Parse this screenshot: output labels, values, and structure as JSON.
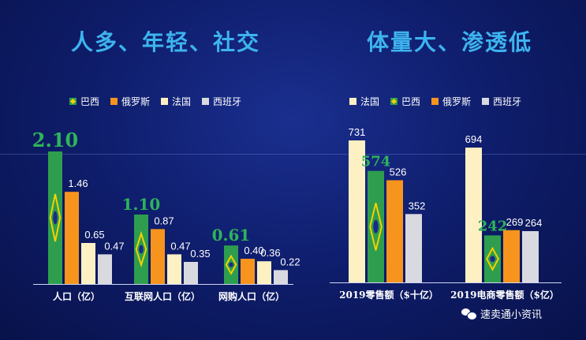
{
  "titles": {
    "left": "人多、年轻、社交",
    "right": "体量大、渗透低"
  },
  "legend_left": [
    {
      "label": "巴西",
      "color": "#2e9e4e",
      "icon": "brazil-flag-icon"
    },
    {
      "label": "俄罗斯",
      "color": "#f7941d",
      "icon": ""
    },
    {
      "label": "法国",
      "color": "#fdf0c2",
      "icon": ""
    },
    {
      "label": "西班牙",
      "color": "#d9d9e0",
      "icon": ""
    }
  ],
  "legend_right": [
    {
      "label": "法国",
      "color": "#fdf0c2",
      "icon": ""
    },
    {
      "label": "巴西",
      "color": "#2e9e4e",
      "icon": "brazil-flag-icon"
    },
    {
      "label": "俄罗斯",
      "color": "#f7941d",
      "icon": ""
    },
    {
      "label": "西班牙",
      "color": "#d9d9e0",
      "icon": ""
    }
  ],
  "chart_data": [
    {
      "type": "bar",
      "categories": [
        "人口（亿）",
        "互联网人口（亿）",
        "网购人口（亿）"
      ],
      "series": [
        {
          "name": "巴西",
          "values": [
            2.1,
            1.1,
            0.61
          ],
          "labels": [
            "2.10",
            "1.10",
            "0.61"
          ],
          "color": "#2e9e4e"
        },
        {
          "name": "俄罗斯",
          "values": [
            1.46,
            0.87,
            0.4
          ],
          "labels": [
            "1.46",
            "0.87",
            "0.40"
          ],
          "color": "#f7941d"
        },
        {
          "name": "法国",
          "values": [
            0.65,
            0.47,
            0.36
          ],
          "labels": [
            "0.65",
            "0.47",
            "0.36"
          ],
          "color": "#fdf0c2"
        },
        {
          "name": "西班牙",
          "values": [
            0.47,
            0.35,
            0.22
          ],
          "labels": [
            "0.47",
            "0.35",
            "0.22"
          ],
          "color": "#d9d9e0"
        }
      ],
      "ylim": [
        0,
        2.1
      ],
      "legend": "top"
    },
    {
      "type": "bar",
      "categories": [
        "2019零售额（$十亿）",
        "2019电商零售额（$亿）"
      ],
      "series": [
        {
          "name": "法国",
          "values": [
            731,
            694
          ],
          "labels": [
            "731",
            "694"
          ],
          "color": "#fdf0c2"
        },
        {
          "name": "巴西",
          "values": [
            574,
            242
          ],
          "labels": [
            "574",
            "242"
          ],
          "color": "#2e9e4e"
        },
        {
          "name": "俄罗斯",
          "values": [
            526,
            269
          ],
          "labels": [
            "526",
            "269"
          ],
          "color": "#f7941d"
        },
        {
          "name": "西班牙",
          "values": [
            352,
            264
          ],
          "labels": [
            "352",
            "264"
          ],
          "color": "#d9d9e0"
        }
      ],
      "ylim": [
        0,
        731
      ],
      "legend": "top"
    }
  ],
  "watermark": {
    "text": "速卖通小资讯",
    "icon": "wechat-icon"
  }
}
